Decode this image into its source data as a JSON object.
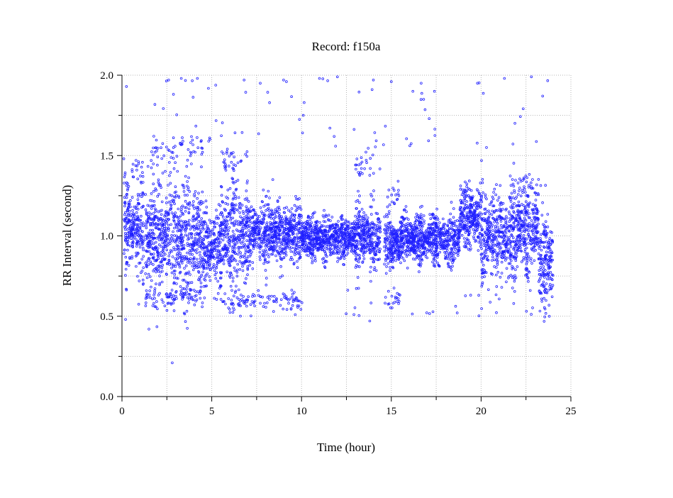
{
  "chart_data": {
    "type": "scatter",
    "title": "Record:  f150a",
    "xlabel": "Time (hour)",
    "ylabel": "RR Interval (second)",
    "xlim": [
      0,
      25
    ],
    "ylim": [
      0,
      2
    ],
    "xticks": [
      "0",
      "5",
      "10",
      "15",
      "20",
      "25"
    ],
    "yticks": [
      "0.0",
      "0.5",
      "1.0",
      "1.5",
      "2.0"
    ],
    "grid": true,
    "marker": "open-circle",
    "color": "#2020ff",
    "series": [
      {
        "density": "continuous RR-interval samples from 0.1 h to 24.0 h",
        "segments": [
          {
            "from": 0.1,
            "to": 1.2,
            "center": 1.05,
            "spread": 0.13,
            "upper_cluster": 1.4
          },
          {
            "from": 1.3,
            "to": 3.0,
            "center": 1.0,
            "spread": 0.18,
            "upper_cluster": 1.5,
            "lower_cluster": 0.62
          },
          {
            "from": 3.0,
            "to": 4.5,
            "center": 1.0,
            "spread": 0.2,
            "upper_cluster": 1.55,
            "lower_cluster": 0.62
          },
          {
            "from": 4.5,
            "to": 5.5,
            "center": 0.92,
            "spread": 0.12
          },
          {
            "from": 5.5,
            "to": 7.0,
            "center": 1.0,
            "spread": 0.18,
            "upper_cluster": 1.48,
            "lower_cluster": 0.6
          },
          {
            "from": 7.0,
            "to": 10.0,
            "center": 1.02,
            "spread": 0.1,
            "lower_cluster": 0.6
          },
          {
            "from": 10.0,
            "to": 13.0,
            "center": 0.99,
            "spread": 0.07
          },
          {
            "from": 13.0,
            "to": 14.4,
            "center": 1.0,
            "spread": 0.1,
            "upper_cluster": 1.45
          },
          {
            "from": 14.6,
            "to": 15.5,
            "center": 0.95,
            "spread": 0.08,
            "upper_cluster": 1.25,
            "lower_cluster": 0.6
          },
          {
            "from": 15.5,
            "to": 18.8,
            "center": 0.98,
            "spread": 0.08
          },
          {
            "from": 18.8,
            "to": 20.0,
            "center": 1.12,
            "spread": 0.1
          },
          {
            "from": 20.0,
            "to": 22.0,
            "center": 1.0,
            "spread": 0.15
          },
          {
            "from": 22.0,
            "to": 23.2,
            "center": 1.05,
            "spread": 0.15,
            "upper_cluster": 1.3
          },
          {
            "from": 23.2,
            "to": 24.0,
            "center": 0.85,
            "spread": 0.15
          }
        ],
        "outliers": [
          [
            0.25,
            1.93
          ],
          [
            2.6,
            1.97
          ],
          [
            3.3,
            1.98
          ],
          [
            4.2,
            1.98
          ],
          [
            6.8,
            1.97
          ],
          [
            7.7,
            1.95
          ],
          [
            9.0,
            1.97
          ],
          [
            11.0,
            1.98
          ],
          [
            12.0,
            1.99
          ],
          [
            14.0,
            1.97
          ],
          [
            15.0,
            1.96
          ],
          [
            16.2,
            1.9
          ],
          [
            16.8,
            1.85
          ],
          [
            17.4,
            1.9
          ],
          [
            19.8,
            1.95
          ],
          [
            21.3,
            1.98
          ],
          [
            22.8,
            1.99
          ],
          [
            1.5,
            0.42
          ],
          [
            2.8,
            0.21
          ],
          [
            0.2,
            0.48
          ],
          [
            13.8,
            0.47
          ],
          [
            23.8,
            0.5
          ],
          [
            4.9,
            1.6
          ],
          [
            10.1,
            1.75
          ],
          [
            20.3,
            1.55
          ],
          [
            8.4,
            1.35
          ]
        ]
      }
    ]
  }
}
